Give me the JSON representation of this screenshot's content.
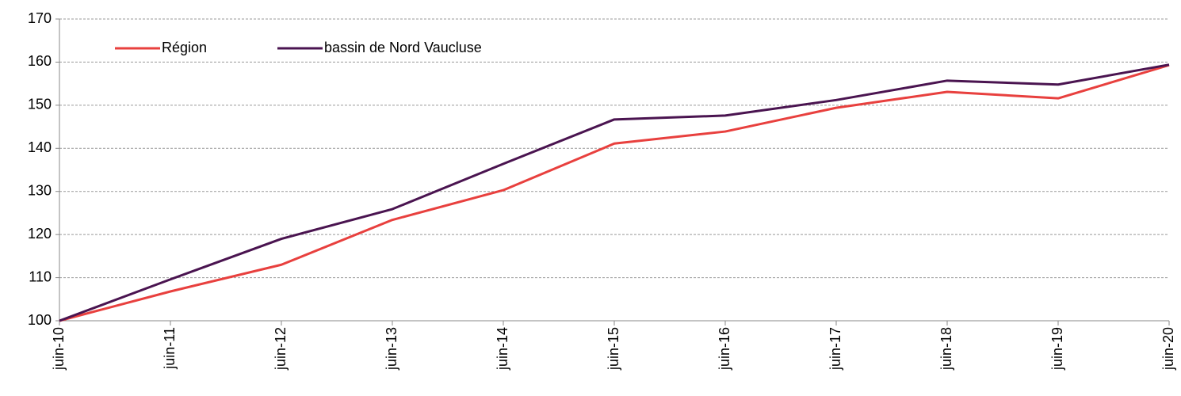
{
  "chart_data": {
    "type": "line",
    "categories": [
      "juin-10",
      "juin-11",
      "juin-12",
      "juin-13",
      "juin-14",
      "juin-15",
      "juin-16",
      "juin-17",
      "juin-18",
      "juin-19",
      "juin-20"
    ],
    "series": [
      {
        "name": "Région",
        "color": "#e8403e",
        "values": [
          100,
          106.8,
          113,
          123.4,
          130.3,
          141.1,
          143.9,
          149.4,
          153.1,
          151.6,
          159.3
        ]
      },
      {
        "name": "bassin de Nord Vaucluse",
        "color": "#4a1450",
        "values": [
          100,
          109.6,
          119,
          125.9,
          136.4,
          146.7,
          147.6,
          151.2,
          155.7,
          154.8,
          159.4
        ]
      }
    ],
    "ylim": [
      100,
      170
    ],
    "yticks": [
      100,
      110,
      120,
      130,
      140,
      150,
      160,
      170
    ],
    "grid": true,
    "legend": "top-left"
  }
}
